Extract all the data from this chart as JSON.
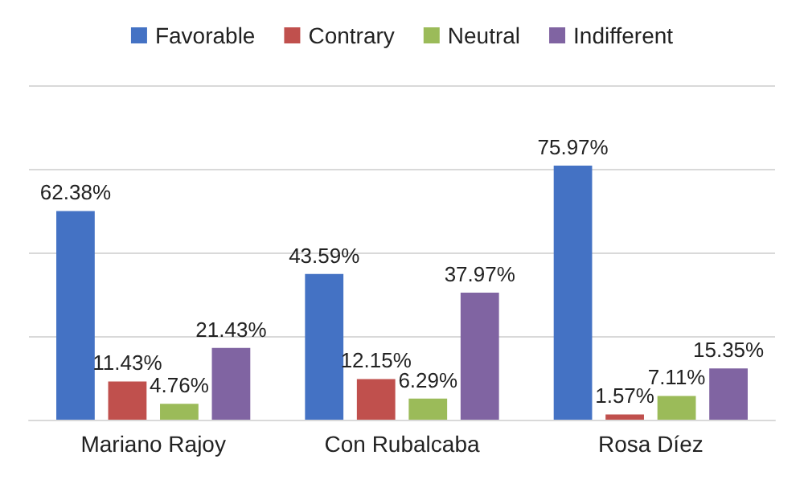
{
  "chart_data": {
    "type": "bar",
    "categories": [
      "Mariano Rajoy",
      "Con Rubalcaba",
      "Rosa Díez"
    ],
    "series": [
      {
        "name": "Favorable",
        "color": "#4472c4",
        "values": [
          62.38,
          43.59,
          75.97
        ],
        "value_labels": [
          "62.38%",
          "43.59%",
          "75.97%"
        ]
      },
      {
        "name": "Contrary",
        "color": "#c0504d",
        "values": [
          11.43,
          12.15,
          1.57
        ],
        "value_labels": [
          "11.43%",
          "12.15%",
          "1.57%"
        ]
      },
      {
        "name": "Neutral",
        "color": "#9bbb59",
        "values": [
          4.76,
          6.29,
          7.11
        ],
        "value_labels": [
          "4.76%",
          "6.29%",
          "7.11%"
        ]
      },
      {
        "name": "Indifferent",
        "color": "#8064a2",
        "values": [
          21.43,
          37.97,
          15.35
        ],
        "value_labels": [
          "21.43%",
          "37.97%",
          "15.35%"
        ]
      }
    ],
    "ylim": [
      0,
      100
    ],
    "yticks": [
      0,
      25,
      50,
      75,
      100
    ],
    "grid": "y",
    "legend": "top",
    "tick_labels": "x"
  }
}
